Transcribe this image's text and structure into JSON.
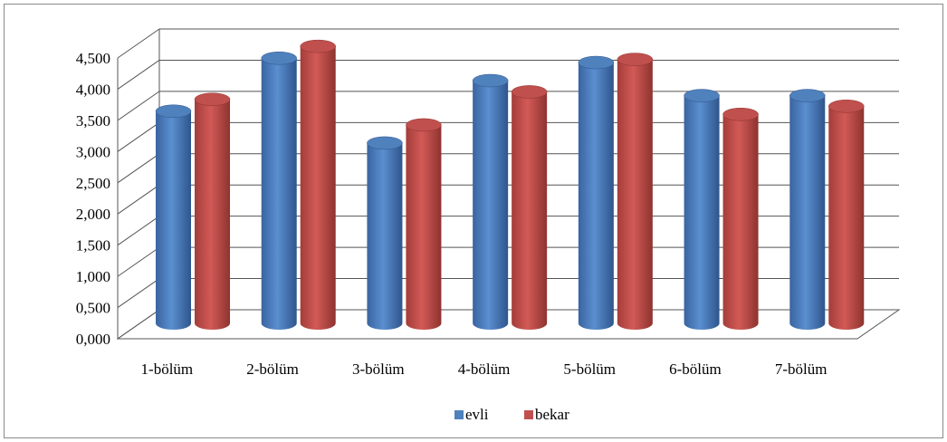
{
  "chart_data": {
    "type": "bar",
    "title": "",
    "xlabel": "",
    "ylabel": "",
    "ylim": [
      0,
      4.5
    ],
    "grid": true,
    "legend_position": "bottom",
    "y_ticks": [
      "0,000",
      "0,500",
      "1,000",
      "1,500",
      "2,000",
      "2,500",
      "3,000",
      "3,500",
      "4,000",
      "4,500"
    ],
    "categories": [
      "1-bölüm",
      "2-bölüm",
      "3-bölüm",
      "4-bölüm",
      "5-bölüm",
      "6-bölüm",
      "7-bölüm"
    ],
    "series": [
      {
        "name": "evli",
        "color": "#4f81bd",
        "values": [
          3.4,
          4.25,
          2.89,
          3.89,
          4.18,
          3.65,
          3.65
        ]
      },
      {
        "name": "bekar",
        "color": "#c0504d",
        "values": [
          3.59,
          4.44,
          3.18,
          3.71,
          4.23,
          3.35,
          3.48
        ]
      }
    ]
  }
}
